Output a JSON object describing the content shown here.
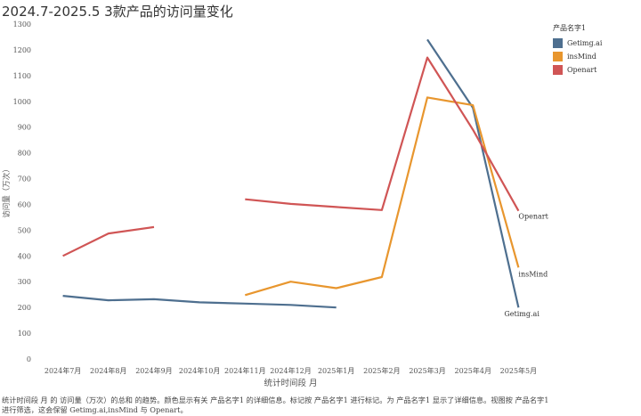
{
  "title": "2024.7-2025.5 3款产品的访问量变化",
  "legend": {
    "title": "产品名字1",
    "items": [
      {
        "label": "Getimg.ai",
        "color": "#4e6f8f"
      },
      {
        "label": "insMind",
        "color": "#e8962e"
      },
      {
        "label": "Openart",
        "color": "#d05555"
      }
    ]
  },
  "caption": "统计时间段 月 的 访问量（万次）的总和 的趋势。颜色显示有关 产品名字1 的详细信息。标记按 产品名字1 进行标记。为 产品名字1 显示了详细信息。视图按 产品名字1 进行筛选，这会保留 Getimg.ai,insMind 与 Openart。",
  "chart_data": {
    "type": "line",
    "categories": [
      "2024年7月",
      "2024年8月",
      "2024年9月",
      "2024年10月",
      "2024年11月",
      "2024年12月",
      "2025年1月",
      "2025年2月",
      "2025年3月",
      "2025年4月",
      "2025年5月"
    ],
    "series": [
      {
        "name": "Getimg.ai",
        "color": "#4e6f8f",
        "values": [
          245,
          228,
          232,
          220,
          215,
          210,
          200,
          null,
          1240,
          975,
          200
        ]
      },
      {
        "name": "insMind",
        "color": "#e8962e",
        "values": [
          null,
          null,
          null,
          null,
          248,
          300,
          275,
          318,
          1015,
          985,
          355
        ]
      },
      {
        "name": "Openart",
        "color": "#d05555",
        "values": [
          400,
          487,
          512,
          null,
          620,
          602,
          590,
          578,
          1170,
          890,
          575
        ]
      }
    ],
    "end_labels": [
      "Getimg.ai",
      "insMind",
      "Openart"
    ],
    "xlabel": "统计时间段 月",
    "ylabel": "访问量（万次）",
    "ylim": [
      0,
      1300
    ],
    "yticks": [
      0,
      100,
      200,
      300,
      400,
      500,
      600,
      700,
      800,
      900,
      1000,
      1100,
      1200,
      1300
    ],
    "grid": false,
    "legend_position": "top-right"
  }
}
